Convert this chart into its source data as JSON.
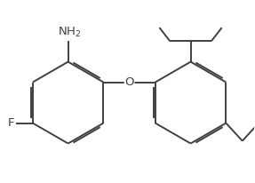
{
  "background": "#ffffff",
  "line_color": "#404040",
  "line_width": 1.4,
  "font_size": 9.5,
  "font_size_sub": 8.0
}
